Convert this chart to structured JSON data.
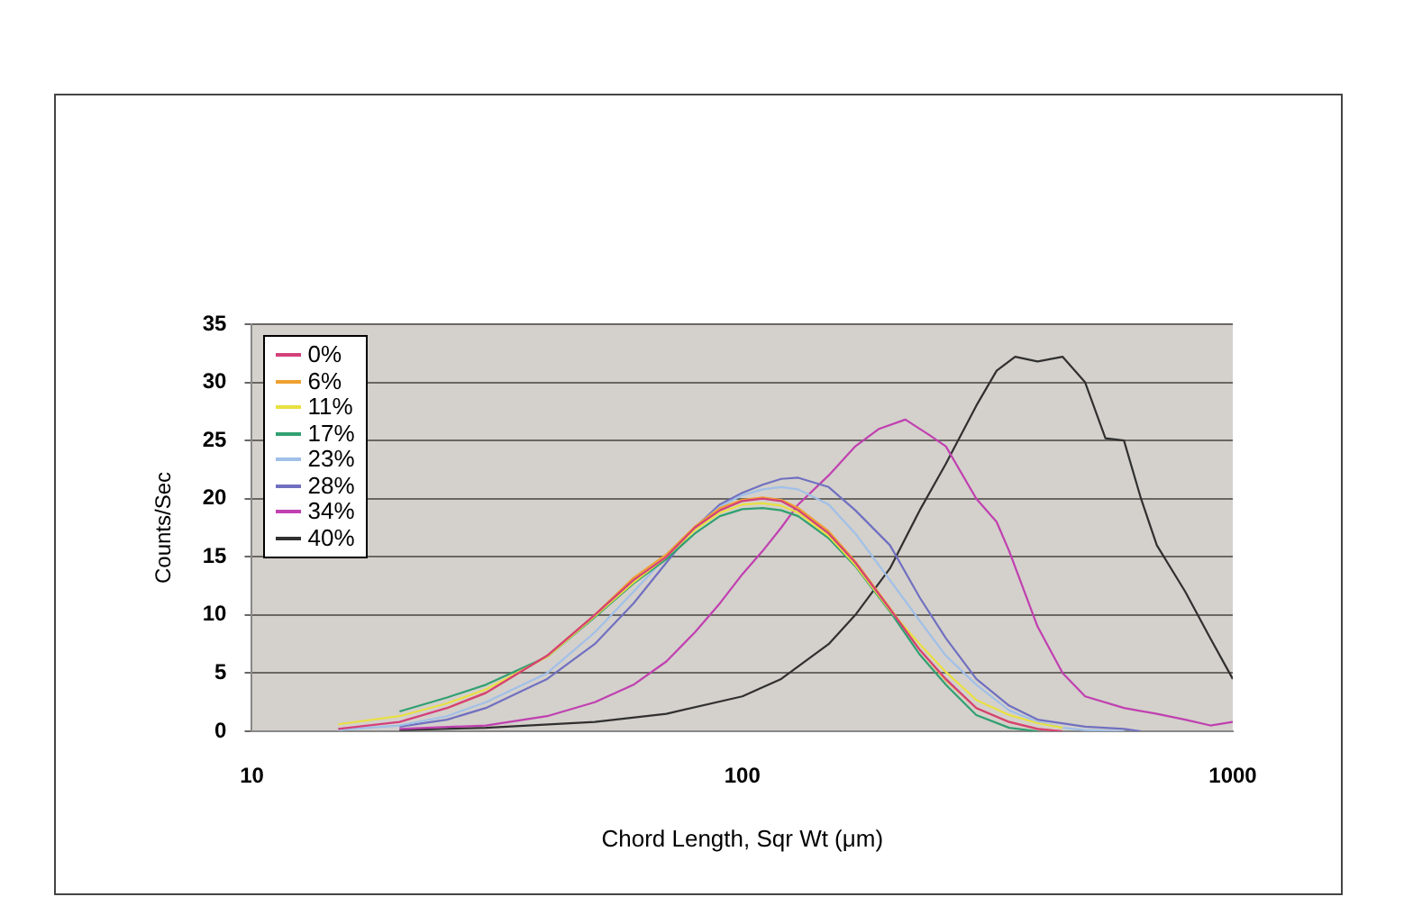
{
  "chart_data": {
    "type": "line",
    "xlabel": "Chord Length, Sqr Wt (μm)",
    "ylabel": "Counts/Sec",
    "log": "x",
    "xlim": [
      10,
      1000
    ],
    "xticks": [
      10,
      100,
      1000
    ],
    "ylim": [
      0,
      35
    ],
    "yticks": [
      0,
      5,
      10,
      15,
      20,
      25,
      30,
      35
    ],
    "grid": "y",
    "legend": "top left",
    "marker": "none",
    "line_style": "solid",
    "series": [
      {
        "name": "0%",
        "color": "#d4407a",
        "x": [
          15,
          20,
          25,
          30,
          40,
          50,
          60,
          70,
          80,
          90,
          100,
          110,
          120,
          130,
          150,
          170,
          200,
          230,
          260,
          300,
          350,
          400,
          450
        ],
        "values": [
          0.2,
          0.8,
          2,
          3.3,
          6.5,
          10,
          13,
          15,
          17.5,
          19,
          19.8,
          20,
          19.8,
          19,
          17,
          14.5,
          10.5,
          7,
          4.5,
          2,
          0.8,
          0.2,
          0
        ]
      },
      {
        "name": "6%",
        "color": "#f0a030",
        "x": [
          25,
          30,
          40,
          50,
          60,
          70,
          80,
          90,
          100,
          110,
          120,
          130,
          150,
          170,
          200,
          230,
          260,
          300,
          350,
          400,
          450
        ],
        "values": [
          2,
          3.3,
          6.5,
          10,
          13.2,
          15.2,
          17.6,
          19.2,
          19.9,
          20.1,
          19.9,
          19.2,
          17.2,
          14.6,
          10.6,
          7,
          4.4,
          2,
          0.8,
          0.2,
          0
        ]
      },
      {
        "name": "11%",
        "color": "#e8e040",
        "x": [
          15,
          20,
          25,
          30,
          40,
          50,
          60,
          70,
          80,
          90,
          100,
          110,
          120,
          130,
          150,
          170,
          200,
          230,
          260,
          300,
          350,
          400,
          450
        ],
        "values": [
          0.6,
          1.3,
          2.4,
          3.6,
          6.4,
          9.9,
          12.8,
          15,
          17.3,
          18.8,
          19.5,
          19.6,
          19.4,
          18.8,
          16.8,
          14.3,
          10.4,
          7.5,
          5.1,
          2.7,
          1.4,
          0.7,
          0.3
        ]
      },
      {
        "name": "17%",
        "color": "#30a070",
        "x": [
          20,
          25,
          30,
          40,
          50,
          60,
          70,
          80,
          90,
          100,
          110,
          120,
          130,
          150,
          170,
          200,
          230,
          260,
          300,
          350,
          400
        ],
        "values": [
          1.7,
          2.9,
          4,
          6.4,
          9.8,
          12.7,
          14.8,
          17,
          18.5,
          19.1,
          19.2,
          19,
          18.5,
          16.6,
          14.2,
          10.3,
          6.6,
          4,
          1.4,
          0.3,
          0
        ]
      },
      {
        "name": "23%",
        "color": "#a0c0e8",
        "x": [
          15,
          20,
          25,
          30,
          40,
          50,
          60,
          70,
          80,
          90,
          100,
          110,
          120,
          130,
          150,
          170,
          200,
          230,
          260,
          300,
          350,
          400,
          450,
          500,
          600
        ],
        "values": [
          0.1,
          0.5,
          1.3,
          2.5,
          5,
          8.5,
          12,
          15,
          17.5,
          19.3,
          20.3,
          20.8,
          21,
          20.8,
          19.5,
          17,
          13,
          9.5,
          6.5,
          4,
          1.8,
          0.8,
          0.3,
          0.1,
          0
        ]
      },
      {
        "name": "28%",
        "color": "#7070c0",
        "x": [
          20,
          25,
          30,
          40,
          50,
          60,
          70,
          80,
          90,
          100,
          110,
          120,
          130,
          150,
          170,
          200,
          230,
          260,
          300,
          350,
          400,
          500,
          600,
          650
        ],
        "values": [
          0.4,
          1,
          2,
          4.5,
          7.5,
          11,
          14.5,
          17.5,
          19.5,
          20.5,
          21.2,
          21.7,
          21.8,
          21,
          19,
          16,
          11.5,
          8,
          4.5,
          2.2,
          1,
          0.4,
          0.2,
          0
        ]
      },
      {
        "name": "34%",
        "color": "#c040b0",
        "x": [
          20,
          30,
          40,
          50,
          60,
          70,
          80,
          90,
          100,
          110,
          120,
          130,
          150,
          170,
          190,
          215,
          240,
          260,
          300,
          330,
          350,
          400,
          450,
          500,
          600,
          700,
          800,
          900,
          1000
        ],
        "values": [
          0.2,
          0.5,
          1.3,
          2.5,
          4,
          6,
          8.5,
          11,
          13.5,
          15.5,
          17.5,
          19.5,
          22,
          24.5,
          26,
          26.8,
          25.5,
          24.5,
          20,
          18,
          15.5,
          9,
          5,
          3,
          2,
          1.5,
          1,
          0.5,
          0.8
        ]
      },
      {
        "name": "40%",
        "color": "#303030",
        "x": [
          20,
          30,
          50,
          70,
          100,
          120,
          150,
          170,
          200,
          230,
          260,
          300,
          330,
          360,
          400,
          450,
          500,
          550,
          600,
          650,
          700,
          800,
          900,
          1000
        ],
        "values": [
          0.1,
          0.3,
          0.8,
          1.5,
          3,
          4.5,
          7.5,
          10,
          14,
          19,
          23,
          28,
          31,
          32.2,
          31.8,
          32.2,
          30,
          25.2,
          25,
          20,
          16,
          12,
          8,
          4.5
        ]
      }
    ]
  }
}
